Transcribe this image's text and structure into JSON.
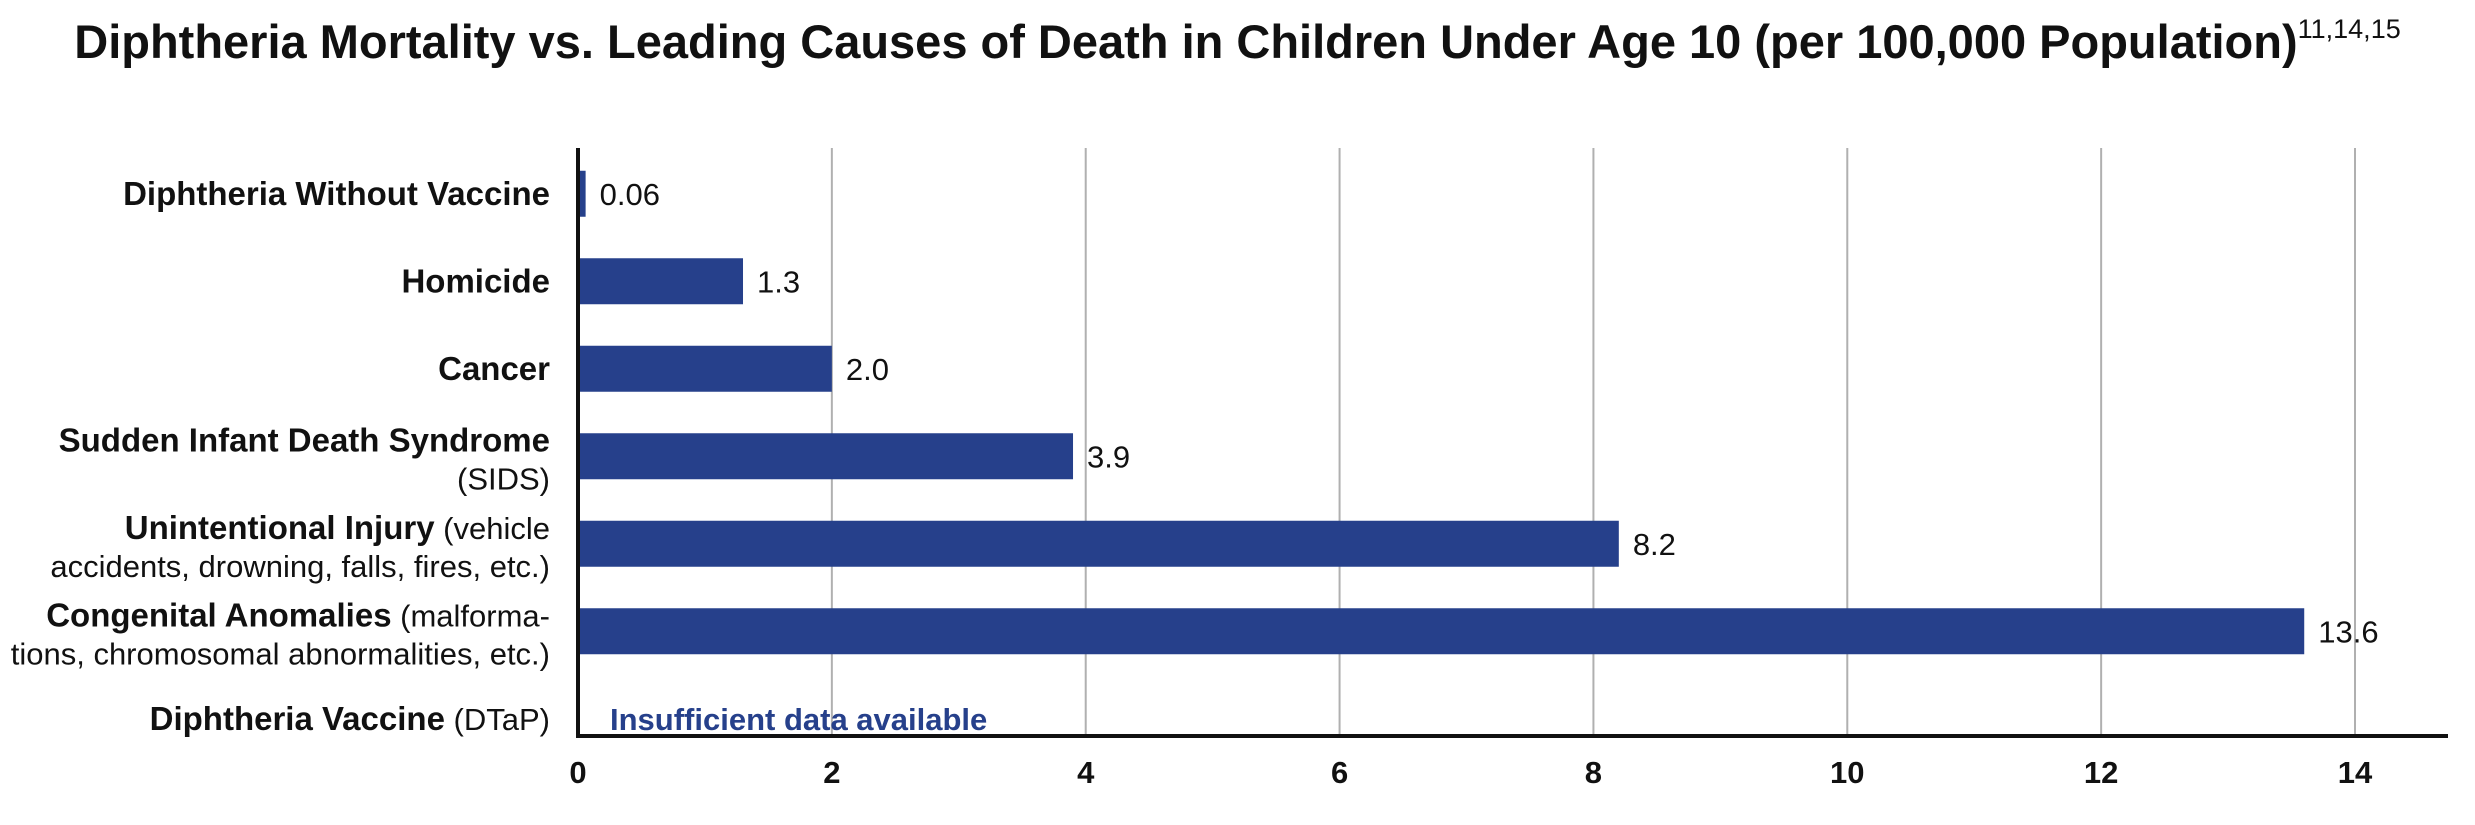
{
  "chart_data": {
    "type": "bar",
    "orientation": "horizontal",
    "title": "Diphtheria Mortality vs. Leading Causes of Death in Children Under Age 10 (per 100,000 Population)",
    "title_superscript": "11,14,15",
    "categories": [
      {
        "bold": "Diphtheria Without Vaccine",
        "rest": "",
        "line2": ""
      },
      {
        "bold": "Homicide",
        "rest": "",
        "line2": ""
      },
      {
        "bold": "Cancer",
        "rest": "",
        "line2": ""
      },
      {
        "bold": "Sudden Infant Death Syndrome",
        "rest": "",
        "line2": "(SIDS)"
      },
      {
        "bold": "Unintentional Injury",
        "rest": " (vehicle",
        "line2": "accidents, drowning, falls, fires, etc.)"
      },
      {
        "bold": "Congenital Anomalies",
        "rest": " (malforma-",
        "line2": "tions, chromosomal abnormalities, etc.)"
      },
      {
        "bold": "Diphtheria Vaccine",
        "rest": " (DTaP)",
        "line2": ""
      }
    ],
    "values": [
      0.06,
      1.3,
      2.0,
      3.9,
      8.2,
      13.6,
      null
    ],
    "data_labels": [
      "0.06",
      "1.3",
      "2.0",
      "3.9",
      "8.2",
      "13.6",
      ""
    ],
    "note": "Insufficient data available",
    "xlim": [
      0,
      14
    ],
    "x_ticks": [
      "0",
      "2",
      "4",
      "6",
      "8",
      "10",
      "12",
      "14"
    ],
    "xlabel": "",
    "ylabel": "",
    "grid": "vertical",
    "legend": "none",
    "bar_color": "#26408b",
    "note_color": "#26408b",
    "grid_color": "#b0b0b0",
    "axis_color": "#111111"
  }
}
